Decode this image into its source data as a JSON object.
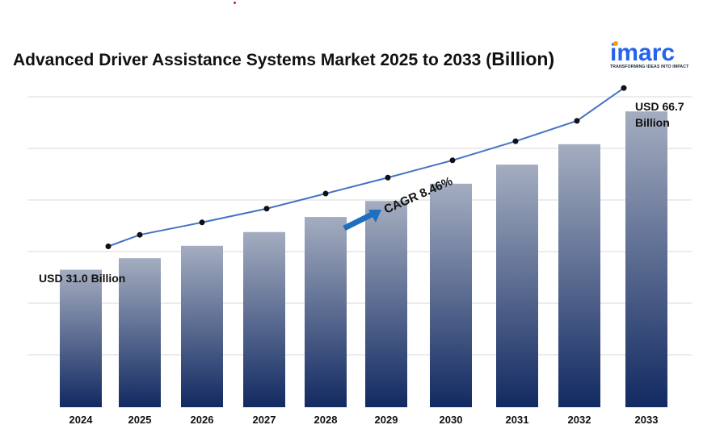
{
  "title_main": "Advanced Driver Assistance Systems Market 2025 to 2033 (",
  "title_unit": "Billion",
  "title_close": ")",
  "logo": {
    "word": "imarc",
    "tagline": "TRANSFORMING IDEAS INTO IMPACT",
    "brand_color": "#2563eb",
    "accent_color": "#f59e0b"
  },
  "annotations": {
    "start": "USD 31.0 Billion",
    "end_line1": "USD 66.7",
    "end_line2": "Billion",
    "cagr": "CAGR 8.46%"
  },
  "colors": {
    "bar_top": "#a4adc0",
    "bar_bottom": "#122a62",
    "line": "#4472c4",
    "marker": "#111111",
    "arrow": "#1f6fbf",
    "grid": "#d9d9d9"
  },
  "chart_data": {
    "type": "bar",
    "title": "Advanced Driver Assistance Systems Market 2025 to 2033 (Billion)",
    "categories": [
      "2024",
      "2025",
      "2026",
      "2027",
      "2028",
      "2029",
      "2030",
      "2031",
      "2032",
      "2033"
    ],
    "series": [
      {
        "values": [
          31.0,
          33.6,
          36.4,
          39.5,
          42.9,
          46.5,
          50.4,
          54.7,
          59.3,
          66.7
        ]
      }
    ],
    "overlay_line": true,
    "ylim": [
      0,
      70
    ],
    "grid": true,
    "legend": "none"
  }
}
